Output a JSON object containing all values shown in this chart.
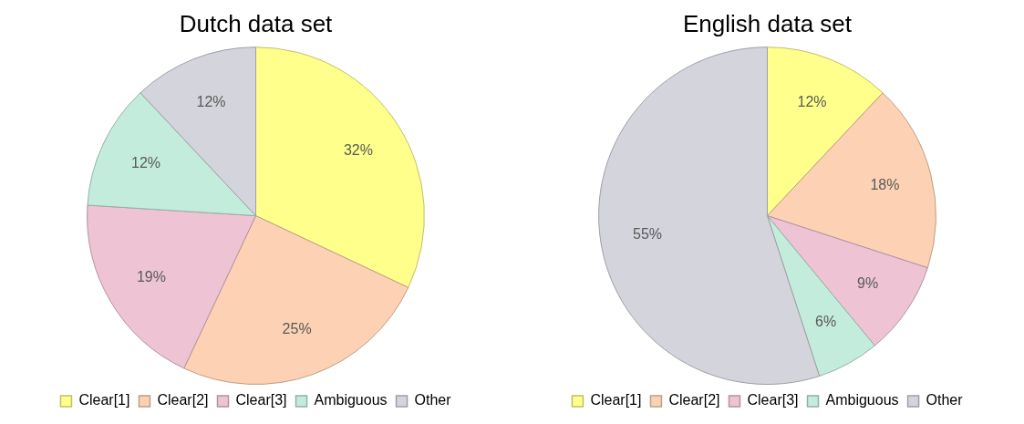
{
  "chart_data": [
    {
      "type": "pie",
      "title": "Dutch data set",
      "categories": [
        "Clear[1]",
        "Clear[2]",
        "Clear[3]",
        "Ambiguous",
        "Other"
      ],
      "values": [
        32,
        25,
        19,
        12,
        12
      ],
      "value_labels": [
        "32%",
        "25%",
        "19%",
        "12%",
        "12%"
      ],
      "colors": [
        "#ffff8c",
        "#fdd2b4",
        "#eec4d4",
        "#c4ecdc",
        "#d4d4dc"
      ],
      "legend": "bottom"
    },
    {
      "type": "pie",
      "title": "English data set",
      "categories": [
        "Clear[1]",
        "Clear[2]",
        "Clear[3]",
        "Ambiguous",
        "Other"
      ],
      "values": [
        12,
        18,
        9,
        6,
        55
      ],
      "value_labels": [
        "12%",
        "18%",
        "9%",
        "6%",
        "55%"
      ],
      "colors": [
        "#ffff8c",
        "#fdd2b4",
        "#eec4d4",
        "#c4ecdc",
        "#d4d4dc"
      ],
      "legend": "bottom"
    }
  ]
}
